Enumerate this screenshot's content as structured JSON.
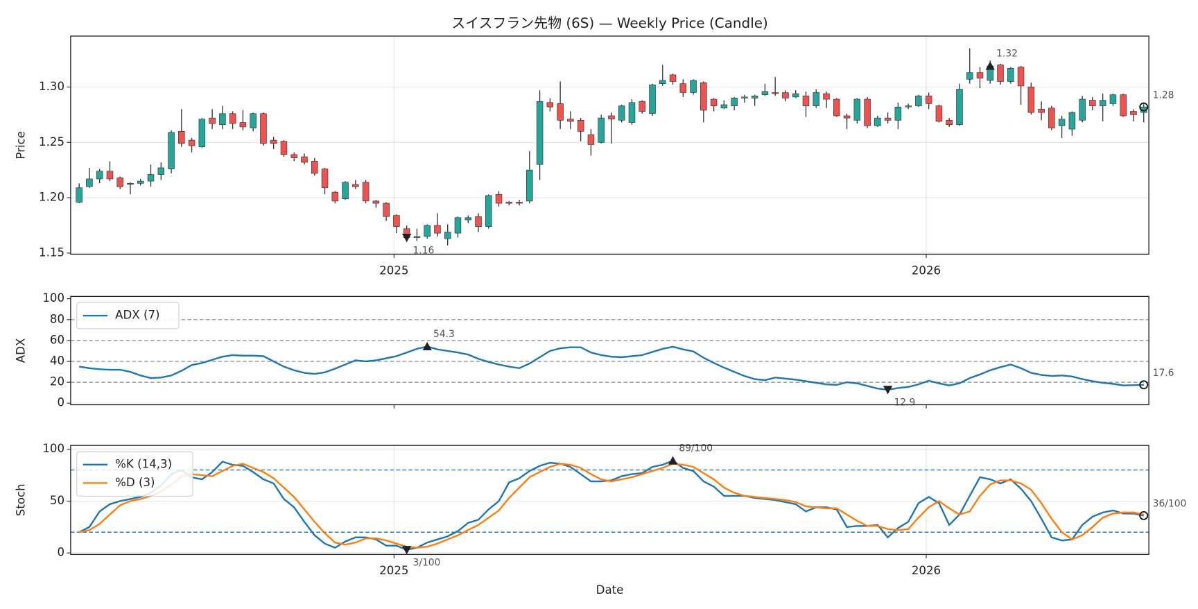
{
  "chart_data": [
    {
      "type": "candlestick",
      "title": "スイスフラン先物 (6S) — Weekly Price (Candle)",
      "y_label": "Price",
      "up_color": "#26a69a",
      "down_color": "#ef5350",
      "wick_color": "#333333",
      "grid": true,
      "xlim": [
        -0.83,
        104.5
      ],
      "xticks": [
        {
          "value": 30.76,
          "label": "2025"
        },
        {
          "value": 82.75,
          "label": "2026"
        }
      ],
      "ylim": [
        1.149,
        1.346
      ],
      "yticks": [
        1.15,
        {
          "value": 1.2,
          "label": "1.20"
        },
        1.25,
        {
          "value": 1.3,
          "label": "1.30"
        }
      ],
      "open": [
        1.196,
        1.21,
        1.217,
        1.224,
        1.218,
        1.212,
        1.213,
        1.215,
        1.221,
        1.226,
        1.26,
        1.252,
        1.246,
        1.272,
        1.266,
        1.276,
        1.268,
        1.263,
        1.276,
        1.252,
        1.251,
        1.239,
        1.237,
        1.233,
        1.226,
        1.205,
        1.199,
        1.212,
        1.214,
        1.197,
        1.195,
        1.184,
        1.172,
        1.164,
        1.165,
        1.175,
        1.163,
        1.168,
        1.18,
        1.183,
        1.174,
        1.203,
        1.196,
        1.196,
        1.197,
        1.23,
        1.286,
        1.285,
        1.271,
        1.27,
        1.257,
        1.25,
        1.274,
        1.27,
        1.268,
        1.287,
        1.276,
        1.303,
        1.311,
        1.303,
        1.295,
        1.304,
        1.289,
        1.281,
        1.283,
        1.29,
        1.29,
        1.293,
        1.295,
        1.295,
        1.291,
        1.292,
        1.283,
        1.294,
        1.289,
        1.274,
        1.27,
        1.289,
        1.265,
        1.272,
        1.27,
        1.282,
        1.283,
        1.292,
        1.283,
        1.27,
        1.266,
        1.307,
        1.313,
        1.306,
        1.32,
        1.305,
        1.318,
        1.3,
        1.28,
        1.281,
        1.265,
        1.262,
        1.27,
        1.288,
        1.283,
        1.285,
        1.293,
        1.278,
        1.277
      ],
      "high": [
        1.213,
        1.227,
        1.226,
        1.233,
        1.219,
        1.214,
        1.217,
        1.23,
        1.232,
        1.261,
        1.28,
        1.254,
        1.272,
        1.28,
        1.283,
        1.278,
        1.279,
        1.277,
        1.277,
        1.255,
        1.252,
        1.241,
        1.24,
        1.236,
        1.227,
        1.206,
        1.215,
        1.216,
        1.216,
        1.198,
        1.196,
        1.185,
        1.175,
        1.172,
        1.176,
        1.186,
        1.176,
        1.183,
        1.184,
        1.186,
        1.203,
        1.206,
        1.197,
        1.198,
        1.242,
        1.297,
        1.29,
        1.305,
        1.278,
        1.272,
        1.262,
        1.275,
        1.277,
        1.284,
        1.289,
        1.288,
        1.303,
        1.32,
        1.312,
        1.307,
        1.307,
        1.305,
        1.29,
        1.288,
        1.291,
        1.293,
        1.293,
        1.303,
        1.309,
        1.297,
        1.297,
        1.296,
        1.298,
        1.296,
        1.29,
        1.276,
        1.29,
        1.291,
        1.274,
        1.277,
        1.286,
        1.285,
        1.293,
        1.295,
        1.284,
        1.272,
        1.303,
        1.335,
        1.318,
        1.324,
        1.321,
        1.318,
        1.319,
        1.304,
        1.287,
        1.283,
        1.274,
        1.278,
        1.292,
        1.291,
        1.294,
        1.294,
        1.294,
        1.28,
        1.285
      ],
      "low": [
        1.195,
        1.209,
        1.213,
        1.215,
        1.208,
        1.203,
        1.211,
        1.21,
        1.216,
        1.222,
        1.246,
        1.241,
        1.245,
        1.262,
        1.262,
        1.262,
        1.261,
        1.26,
        1.247,
        1.244,
        1.237,
        1.233,
        1.23,
        1.22,
        1.203,
        1.195,
        1.198,
        1.208,
        1.195,
        1.191,
        1.179,
        1.168,
        1.16,
        1.161,
        1.163,
        1.165,
        1.157,
        1.164,
        1.177,
        1.169,
        1.172,
        1.192,
        1.193,
        1.193,
        1.195,
        1.216,
        1.278,
        1.262,
        1.262,
        1.251,
        1.238,
        1.249,
        1.249,
        1.268,
        1.266,
        1.276,
        1.274,
        1.301,
        1.302,
        1.291,
        1.293,
        1.268,
        1.278,
        1.28,
        1.279,
        1.286,
        1.283,
        1.292,
        1.292,
        1.287,
        1.29,
        1.273,
        1.281,
        1.281,
        1.273,
        1.262,
        1.267,
        1.263,
        1.264,
        1.267,
        1.262,
        1.28,
        1.282,
        1.28,
        1.268,
        1.264,
        1.265,
        1.303,
        1.299,
        1.303,
        1.302,
        1.303,
        1.284,
        1.275,
        1.27,
        1.261,
        1.254,
        1.256,
        1.268,
        1.279,
        1.269,
        1.283,
        1.273,
        1.269,
        1.268
      ],
      "close": [
        1.209,
        1.217,
        1.224,
        1.217,
        1.21,
        1.213,
        1.215,
        1.221,
        1.227,
        1.259,
        1.249,
        1.247,
        1.271,
        1.267,
        1.276,
        1.267,
        1.264,
        1.276,
        1.249,
        1.249,
        1.239,
        1.236,
        1.232,
        1.222,
        1.209,
        1.197,
        1.214,
        1.21,
        1.197,
        1.195,
        1.183,
        1.174,
        1.164,
        1.165,
        1.175,
        1.168,
        1.169,
        1.182,
        1.182,
        1.174,
        1.202,
        1.195,
        1.195,
        1.195,
        1.225,
        1.287,
        1.282,
        1.27,
        1.269,
        1.26,
        1.248,
        1.272,
        1.271,
        1.283,
        1.286,
        1.278,
        1.302,
        1.306,
        1.305,
        1.295,
        1.306,
        1.279,
        1.283,
        1.284,
        1.29,
        1.291,
        1.292,
        1.296,
        1.294,
        1.29,
        1.294,
        1.283,
        1.295,
        1.289,
        1.274,
        1.272,
        1.289,
        1.265,
        1.272,
        1.27,
        1.282,
        1.283,
        1.292,
        1.285,
        1.269,
        1.266,
        1.298,
        1.313,
        1.308,
        1.319,
        1.305,
        1.317,
        1.301,
        1.277,
        1.277,
        1.263,
        1.271,
        1.277,
        1.289,
        1.283,
        1.288,
        1.293,
        1.274,
        1.275,
        1.282
      ],
      "max_label": {
        "value": 1.319,
        "label": "1.32"
      },
      "min_label": {
        "value": 1.164,
        "label": "1.16"
      },
      "last_label": {
        "value": 1.282,
        "label": "1.28"
      }
    },
    {
      "type": "line",
      "y_label": "ADX",
      "grid": false,
      "legend": "upper left",
      "xlim": [
        -0.83,
        104.5
      ],
      "xticks": [
        30.76,
        82.75
      ],
      "ylim": [
        -1.5,
        102.2
      ],
      "yticks": [
        0,
        20,
        40,
        60,
        80,
        100
      ],
      "hlines": {
        "values": [
          20,
          40,
          60,
          80
        ],
        "color": "#999999"
      },
      "series": [
        {
          "name": "ADX (7)",
          "color": "#1f77b4",
          "values": [
            35,
            33.5,
            32.5,
            32,
            32,
            30,
            26.5,
            24,
            24.5,
            26.5,
            31,
            36.5,
            38.5,
            41.5,
            44.5,
            46,
            45.5,
            45.5,
            45,
            40,
            35,
            31.5,
            29,
            28,
            29.5,
            33,
            37,
            41,
            40,
            41,
            43,
            45,
            48.5,
            52,
            54.3,
            51.5,
            50,
            48.5,
            46.5,
            42.5,
            39.5,
            37,
            35,
            33.5,
            38,
            44,
            50,
            52.5,
            53.5,
            53.5,
            48.5,
            46,
            44.5,
            44,
            45,
            46,
            49,
            52,
            54,
            51.5,
            49.5,
            43.5,
            38.5,
            34,
            30,
            26,
            23,
            22,
            24.5,
            23.5,
            22.5,
            21,
            19.5,
            18,
            17.5,
            20,
            19,
            16.5,
            14,
            12.9,
            14.5,
            15.5,
            18,
            21.5,
            19,
            17,
            19,
            24,
            27.5,
            31.5,
            34.5,
            37,
            33.5,
            29,
            27,
            26,
            26.5,
            25.5,
            23,
            21,
            19.5,
            18.5,
            17,
            17.2,
            17.6
          ],
          "max_label": {
            "value": 54.3,
            "label": "54.3"
          },
          "min_label": {
            "value": 12.9,
            "label": "12.9"
          },
          "last_label": {
            "value": 17.6,
            "label": "17.6"
          }
        }
      ]
    },
    {
      "type": "line",
      "y_label": "Stoch",
      "x_label": "Date",
      "grid": true,
      "legend": "upper left",
      "xlim": [
        -0.83,
        104.5
      ],
      "xticks": [
        {
          "value": 30.76,
          "label": "2025"
        },
        {
          "value": 82.75,
          "label": "2026"
        }
      ],
      "ylim": [
        -1.5,
        103.7
      ],
      "yticks": [
        0,
        50,
        100
      ],
      "hlines": {
        "values": [
          20,
          80
        ],
        "color": "#1f77b4"
      },
      "series": [
        {
          "name": "%K (14,3)",
          "color": "#1f77b4",
          "values": [
            20,
            25,
            40,
            47,
            50,
            52,
            54,
            58,
            65,
            76,
            80,
            73,
            71,
            78,
            88,
            85,
            84,
            78,
            71,
            67,
            52,
            44,
            30,
            17,
            9,
            5,
            11,
            15,
            15,
            13,
            7,
            7,
            3,
            5,
            10,
            13,
            16,
            21,
            29,
            32,
            42,
            50,
            68,
            72,
            79,
            84,
            87,
            86,
            83,
            76,
            69,
            69,
            70,
            74,
            76,
            77,
            83,
            85,
            89,
            82,
            79,
            69,
            64,
            55,
            55,
            55,
            53,
            52,
            51,
            49,
            47,
            40,
            44,
            44,
            42,
            25,
            26,
            26,
            27,
            15,
            24,
            30,
            48,
            54,
            48,
            27,
            37,
            55,
            73,
            71,
            67,
            71,
            62,
            50,
            33,
            15,
            12,
            13,
            27,
            35,
            39,
            41,
            38,
            38,
            36
          ],
          "max_label": {
            "value": 89,
            "label": "89/100"
          },
          "min_label": {
            "value": 3,
            "label": "3/100"
          },
          "last_label": {
            "value": 36,
            "label": "36/100"
          }
        },
        {
          "name": "%D (3)",
          "color": "#ff7f0e",
          "values": [
            20,
            22,
            28,
            37,
            46,
            50,
            52,
            55,
            59,
            66,
            74,
            76,
            75,
            74,
            79,
            84,
            86,
            82,
            78,
            72,
            63,
            54,
            42,
            30,
            19,
            10,
            8,
            10,
            14,
            14,
            12,
            9,
            6,
            5,
            6,
            9,
            13,
            17,
            22,
            27,
            34,
            41,
            53,
            63,
            73,
            78,
            83,
            86,
            85,
            82,
            76,
            71,
            69,
            71,
            73,
            76,
            79,
            82,
            86,
            85,
            83,
            77,
            71,
            63,
            58,
            55,
            54,
            53,
            52,
            51,
            49,
            45,
            44,
            43,
            43,
            37,
            31,
            26,
            26,
            23,
            22,
            23,
            34,
            44,
            50,
            43,
            37,
            40,
            55,
            66,
            70,
            70,
            67,
            61,
            48,
            33,
            20,
            13,
            17,
            25,
            34,
            38,
            39,
            39,
            37
          ]
        }
      ]
    }
  ]
}
